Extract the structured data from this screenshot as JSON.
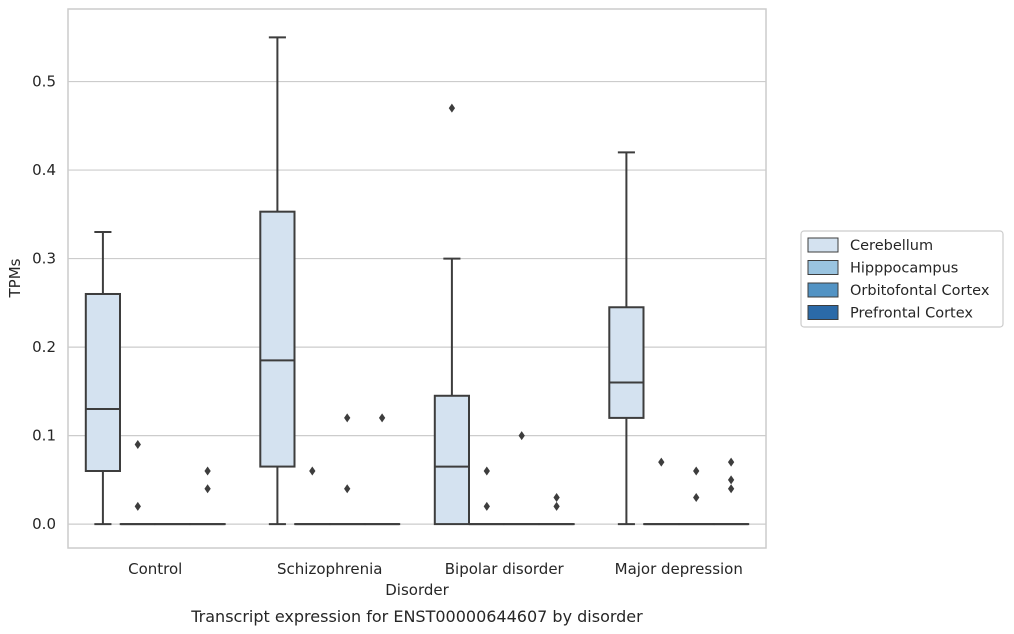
{
  "chart_data": {
    "type": "box",
    "title": "",
    "caption": "Transcript expression for ENST00000644607 by disorder",
    "xlabel": "Disorder",
    "ylabel": "TPMs",
    "ylim": [
      -0.027,
      0.582
    ],
    "yticks": [
      "0.0",
      "0.1",
      "0.2",
      "0.3",
      "0.4",
      "0.5"
    ],
    "ytick_values": [
      0.0,
      0.1,
      0.2,
      0.3,
      0.4,
      0.5
    ],
    "grid": "horizontal",
    "legend_position": "right",
    "categories": [
      "Control",
      "Schizophrenia",
      "Bipolar disorder",
      "Major depression"
    ],
    "series": [
      {
        "name": "Cerebellum",
        "color": "#d4e2f0",
        "boxes": [
          {
            "whisker_low": 0.0,
            "q1": 0.06,
            "median": 0.13,
            "q3": 0.26,
            "whisker_high": 0.33,
            "outliers": []
          },
          {
            "whisker_low": 0.0,
            "q1": 0.065,
            "median": 0.185,
            "q3": 0.353,
            "whisker_high": 0.55,
            "outliers": []
          },
          {
            "whisker_low": 0.0,
            "q1": 0.0,
            "median": 0.065,
            "q3": 0.145,
            "whisker_high": 0.3,
            "outliers": [
              0.47
            ]
          },
          {
            "whisker_low": 0.0,
            "q1": 0.12,
            "median": 0.16,
            "q3": 0.245,
            "whisker_high": 0.42,
            "outliers": []
          }
        ]
      },
      {
        "name": "Hipppocampus",
        "color": "#9ac4e0",
        "boxes": [
          {
            "whisker_low": 0.0,
            "q1": 0.0,
            "median": 0.0,
            "q3": 0.0,
            "whisker_high": 0.0,
            "outliers": [
              0.09,
              0.02
            ]
          },
          {
            "whisker_low": 0.0,
            "q1": 0.0,
            "median": 0.0,
            "q3": 0.0,
            "whisker_high": 0.0,
            "outliers": [
              0.06
            ]
          },
          {
            "whisker_low": 0.0,
            "q1": 0.0,
            "median": 0.0,
            "q3": 0.0,
            "whisker_high": 0.0,
            "outliers": [
              0.06,
              0.02
            ]
          },
          {
            "whisker_low": 0.0,
            "q1": 0.0,
            "median": 0.0,
            "q3": 0.0,
            "whisker_high": 0.0,
            "outliers": [
              0.07
            ]
          }
        ]
      },
      {
        "name": "Orbitofontal Cortex",
        "color": "#5293c4",
        "boxes": [
          {
            "whisker_low": 0.0,
            "q1": 0.0,
            "median": 0.0,
            "q3": 0.0,
            "whisker_high": 0.0,
            "outliers": []
          },
          {
            "whisker_low": 0.0,
            "q1": 0.0,
            "median": 0.0,
            "q3": 0.0,
            "whisker_high": 0.0,
            "outliers": [
              0.12,
              0.04
            ]
          },
          {
            "whisker_low": 0.0,
            "q1": 0.0,
            "median": 0.0,
            "q3": 0.0,
            "whisker_high": 0.0,
            "outliers": [
              0.1
            ]
          },
          {
            "whisker_low": 0.0,
            "q1": 0.0,
            "median": 0.0,
            "q3": 0.0,
            "whisker_high": 0.0,
            "outliers": [
              0.06,
              0.03
            ]
          }
        ]
      },
      {
        "name": "Prefrontal Cortex",
        "color": "#2b6aa8",
        "boxes": [
          {
            "whisker_low": 0.0,
            "q1": 0.0,
            "median": 0.0,
            "q3": 0.0,
            "whisker_high": 0.0,
            "outliers": [
              0.06,
              0.04
            ]
          },
          {
            "whisker_low": 0.0,
            "q1": 0.0,
            "median": 0.0,
            "q3": 0.0,
            "whisker_high": 0.0,
            "outliers": [
              0.12
            ]
          },
          {
            "whisker_low": 0.0,
            "q1": 0.0,
            "median": 0.0,
            "q3": 0.0,
            "whisker_high": 0.0,
            "outliers": [
              0.03,
              0.02
            ]
          },
          {
            "whisker_low": 0.0,
            "q1": 0.0,
            "median": 0.0,
            "q3": 0.0,
            "whisker_high": 0.0,
            "outliers": [
              0.07,
              0.05,
              0.04
            ]
          }
        ]
      }
    ]
  }
}
